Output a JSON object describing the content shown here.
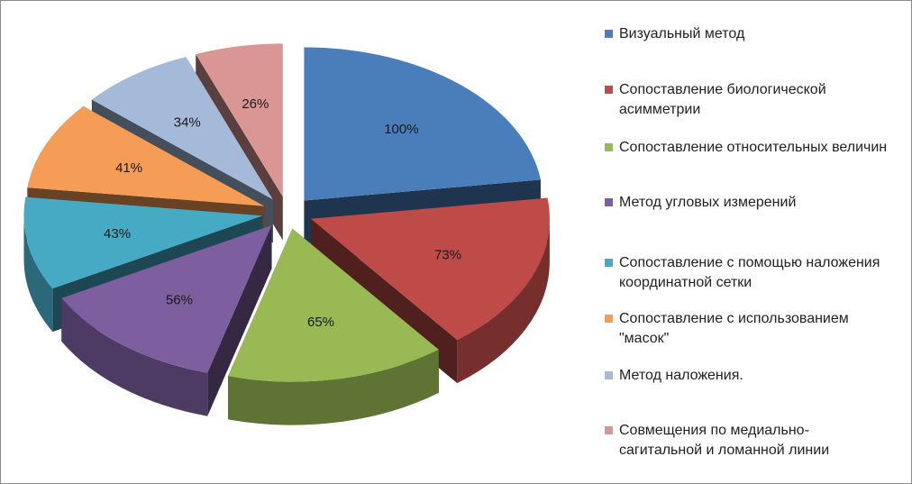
{
  "chart_data": {
    "type": "pie",
    "categories": [
      "Визуальный метод",
      "Сопоставление биологической асимметрии",
      "Сопоставление относительных величин",
      "Метод угловых измерений",
      "Сопоставление с помощью наложения координатной сетки",
      "Сопоставление с использованием \"масок\"",
      "Метод наложения.",
      "Совмещения по медиально-сагитальной и ломанной линии"
    ],
    "values": [
      100,
      73,
      65,
      56,
      43,
      41,
      34,
      26
    ],
    "value_labels": [
      "100%",
      "73%",
      "65%",
      "56%",
      "43%",
      "41%",
      "34%",
      "26%"
    ],
    "colors": [
      "#4A7EBB",
      "#BE4B48",
      "#98B954",
      "#7D5FA0",
      "#46AAC5",
      "#F59D56",
      "#A5B9D9",
      "#D99694"
    ],
    "style": "3d-exploded",
    "legend_position": "right"
  }
}
